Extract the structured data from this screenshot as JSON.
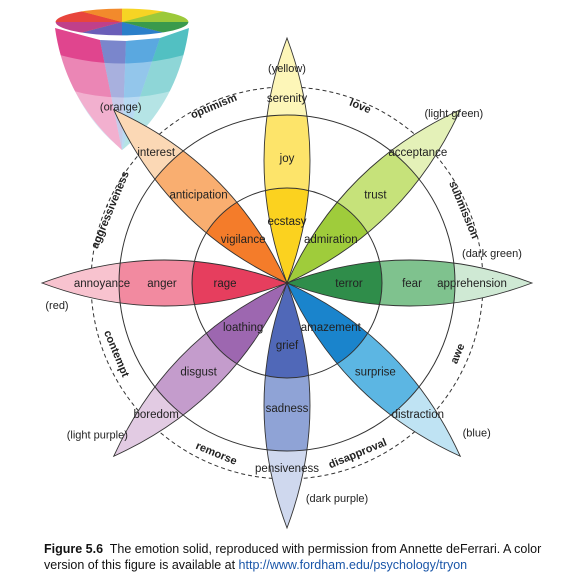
{
  "petals": [
    {
      "id": "yellow",
      "angle": -90,
      "outer": "serenity",
      "mid": "joy",
      "inner": "ecstasy",
      "colors": [
        "#fdf6b8",
        "#fde46a",
        "#fbd21f"
      ]
    },
    {
      "id": "lightgreen",
      "angle": -45,
      "outer": "acceptance",
      "mid": "trust",
      "inner": "admiration",
      "colors": [
        "#e4f1b8",
        "#c6e27a",
        "#9fcc3b"
      ]
    },
    {
      "id": "darkgreen",
      "angle": 0,
      "outer": "apprehension",
      "mid": "fear",
      "inner": "terror",
      "colors": [
        "#cfe9d4",
        "#7fc28e",
        "#2f8d4a"
      ]
    },
    {
      "id": "blue",
      "angle": 45,
      "outer": "distraction",
      "mid": "surprise",
      "inner": "amazement",
      "colors": [
        "#bfe3f3",
        "#5cb6e3",
        "#1a84cc"
      ]
    },
    {
      "id": "darkpurple",
      "angle": 90,
      "outer": "pensiveness",
      "mid": "sadness",
      "inner": "grief",
      "colors": [
        "#cfd8ee",
        "#8fa3d6",
        "#5068b8"
      ]
    },
    {
      "id": "lightpurple",
      "angle": 135,
      "outer": "boredom",
      "mid": "disgust",
      "inner": "loathing",
      "colors": [
        "#e2cbe3",
        "#c49ccc",
        "#9d67b0"
      ]
    },
    {
      "id": "red",
      "angle": 180,
      "outer": "annoyance",
      "mid": "anger",
      "inner": "rage",
      "colors": [
        "#f8c3cf",
        "#f28aa0",
        "#e63e5e"
      ]
    },
    {
      "id": "orange",
      "angle": -135,
      "outer": "interest",
      "mid": "anticipation",
      "inner": "vigilance",
      "colors": [
        "#fbd8b5",
        "#f9ae70",
        "#f47c2a"
      ]
    }
  ],
  "dyads": [
    "love",
    "submission",
    "awe",
    "disapproval",
    "remorse",
    "contempt",
    "aggressiveness",
    "optimism"
  ],
  "color_notes": [
    "(yellow)",
    "(light green)",
    "(dark green)",
    "(blue)",
    "(dark purple)",
    "(light purple)",
    "(red)",
    "(orange)"
  ],
  "caption": {
    "figure": "Figure 5.6",
    "text": "The emotion solid, reproduced with permission from Annette deFerrari. A color version of this figure is available at ",
    "url": "http://www.fordham.edu/psychology/tryon"
  }
}
